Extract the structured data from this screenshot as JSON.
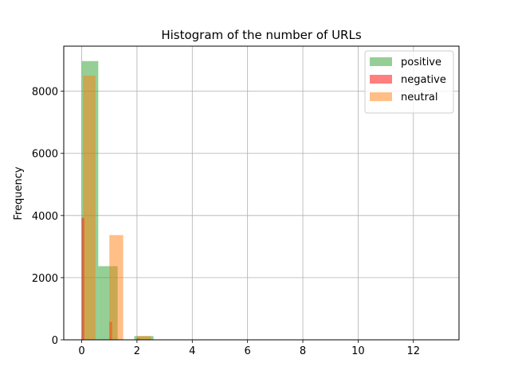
{
  "chart_data": {
    "type": "bar",
    "title": "Histogram of the number of URLs",
    "xlabel": "",
    "ylabel": "Frequency",
    "xlim": [
      -0.65,
      13.65
    ],
    "ylim": [
      0,
      9450
    ],
    "xticks": [
      0,
      2,
      4,
      6,
      8,
      10,
      12
    ],
    "yticks": [
      0,
      2000,
      4000,
      6000,
      8000
    ],
    "grid": true,
    "legend_position": "top-right",
    "series": [
      {
        "name": "positive",
        "color": "#2ca02c",
        "opacity": 0.5,
        "bins": [
          {
            "x0": 0.0,
            "x1": 0.6,
            "value": 8970
          },
          {
            "x0": 0.6,
            "x1": 1.3,
            "value": 2370
          },
          {
            "x0": 1.9,
            "x1": 2.6,
            "value": 120
          }
        ]
      },
      {
        "name": "negative",
        "color": "#ff0000",
        "opacity": 0.5,
        "bins": [
          {
            "x0": 0.0,
            "x1": 0.1,
            "value": 3930
          },
          {
            "x0": 1.0,
            "x1": 1.1,
            "value": 580
          },
          {
            "x0": 2.0,
            "x1": 2.1,
            "value": 50
          }
        ]
      },
      {
        "name": "neutral",
        "color": "#ff7f0e",
        "opacity": 0.5,
        "bins": [
          {
            "x0": 0.05,
            "x1": 0.5,
            "value": 8500
          },
          {
            "x0": 1.0,
            "x1": 1.5,
            "value": 3370
          },
          {
            "x0": 2.0,
            "x1": 2.5,
            "value": 120
          }
        ]
      }
    ]
  }
}
